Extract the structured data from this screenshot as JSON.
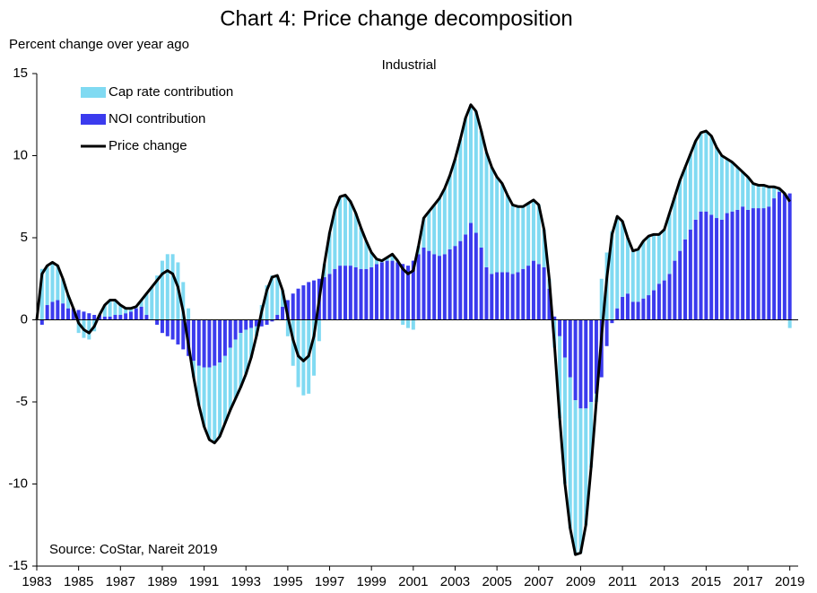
{
  "chart_data": {
    "type": "bar",
    "title": "Chart 4: Price change decomposition",
    "subtitle": "Industrial",
    "y_label": "Percent change over year ago",
    "annotation": "Source:  CoStar, Nareit 2019",
    "legend": "upper left",
    "stacked": true,
    "xlim": [
      1983,
      2019.4
    ],
    "xticks": [
      1983,
      1985,
      1987,
      1989,
      1991,
      1993,
      1995,
      1997,
      1999,
      2001,
      2003,
      2005,
      2007,
      2009,
      2011,
      2013,
      2015,
      2017,
      2019
    ],
    "ylim": [
      -15,
      15
    ],
    "yticks": [
      -15,
      -10,
      -5,
      0,
      5,
      10,
      15
    ],
    "x": [
      1983,
      1983.25,
      1983.5,
      1983.75,
      1984,
      1984.25,
      1984.5,
      1984.75,
      1985,
      1985.25,
      1985.5,
      1985.75,
      1986,
      1986.25,
      1986.5,
      1986.75,
      1987,
      1987.25,
      1987.5,
      1987.75,
      1988,
      1988.25,
      1988.5,
      1988.75,
      1989,
      1989.25,
      1989.5,
      1989.75,
      1990,
      1990.25,
      1990.5,
      1990.75,
      1991,
      1991.25,
      1991.5,
      1991.75,
      1992,
      1992.25,
      1992.5,
      1992.75,
      1993,
      1993.25,
      1993.5,
      1993.75,
      1994,
      1994.25,
      1994.5,
      1994.75,
      1995,
      1995.25,
      1995.5,
      1995.75,
      1996,
      1996.25,
      1996.5,
      1996.75,
      1997,
      1997.25,
      1997.5,
      1997.75,
      1998,
      1998.25,
      1998.5,
      1998.75,
      1999,
      1999.25,
      1999.5,
      1999.75,
      2000,
      2000.25,
      2000.5,
      2000.75,
      2001,
      2001.25,
      2001.5,
      2001.75,
      2002,
      2002.25,
      2002.5,
      2002.75,
      2003,
      2003.25,
      2003.5,
      2003.75,
      2004,
      2004.25,
      2004.5,
      2004.75,
      2005,
      2005.25,
      2005.5,
      2005.75,
      2006,
      2006.25,
      2006.5,
      2006.75,
      2007,
      2007.25,
      2007.5,
      2007.75,
      2008,
      2008.25,
      2008.5,
      2008.75,
      2009,
      2009.25,
      2009.5,
      2009.75,
      2010,
      2010.25,
      2010.5,
      2010.75,
      2011,
      2011.25,
      2011.5,
      2011.75,
      2012,
      2012.25,
      2012.5,
      2012.75,
      2013,
      2013.25,
      2013.5,
      2013.75,
      2014,
      2014.25,
      2014.5,
      2014.75,
      2015,
      2015.25,
      2015.5,
      2015.75,
      2016,
      2016.25,
      2016.5,
      2016.75,
      2017,
      2017.25,
      2017.5,
      2017.75,
      2018,
      2018.25,
      2018.5,
      2018.75,
      2019
    ],
    "series": [
      {
        "name": "NOI contribution",
        "type": "bar",
        "color": "#3b3bee",
        "values": [
          0,
          -0.3,
          0.9,
          1.1,
          1.2,
          1.0,
          0.7,
          0.7,
          0.6,
          0.5,
          0.4,
          0.3,
          0.3,
          0.2,
          0.2,
          0.3,
          0.3,
          0.4,
          0.5,
          0.7,
          0.8,
          0.3,
          0,
          -0.3,
          -0.8,
          -1.0,
          -1.2,
          -1.5,
          -1.8,
          -2.2,
          -2.5,
          -2.8,
          -2.9,
          -2.9,
          -2.8,
          -2.6,
          -2.2,
          -1.7,
          -1.2,
          -0.8,
          -0.6,
          -0.5,
          -0.4,
          -0.4,
          -0.3,
          -0.1,
          0.3,
          0.8,
          1.2,
          1.6,
          1.9,
          2.1,
          2.3,
          2.4,
          2.5,
          2.6,
          2.8,
          3.1,
          3.3,
          3.3,
          3.3,
          3.2,
          3.1,
          3.1,
          3.2,
          3.4,
          3.5,
          3.6,
          3.6,
          3.5,
          3.4,
          3.3,
          3.6,
          4.0,
          4.4,
          4.2,
          4.0,
          3.9,
          4.0,
          4.3,
          4.5,
          4.8,
          5.2,
          5.9,
          5.3,
          4.4,
          3.2,
          2.8,
          2.9,
          2.9,
          2.9,
          2.8,
          2.9,
          3.1,
          3.3,
          3.6,
          3.4,
          3.2,
          1.9,
          0.2,
          -1.0,
          -2.3,
          -3.5,
          -4.9,
          -5.4,
          -5.4,
          -5.0,
          -4.5,
          -3.5,
          -1.6,
          -0.2,
          0.7,
          1.4,
          1.6,
          1.1,
          1.1,
          1.3,
          1.5,
          1.8,
          2.2,
          2.4,
          2.8,
          3.6,
          4.2,
          4.9,
          5.5,
          6.1,
          6.6,
          6.6,
          6.4,
          6.2,
          6.1,
          6.5,
          6.6,
          6.7,
          6.9,
          6.7,
          6.8,
          6.8,
          6.8,
          6.9,
          7.4,
          7.8,
          7.7,
          7.7
        ]
      },
      {
        "name": "Cap rate contribution",
        "type": "bar",
        "color": "#80daf2",
        "values": [
          0,
          3.1,
          2.4,
          2.4,
          2.1,
          1.5,
          0.8,
          0,
          -0.8,
          -1.1,
          -1.2,
          -0.7,
          0,
          0.7,
          1.0,
          0.9,
          0.6,
          0.3,
          0.2,
          0.1,
          0.4,
          1.3,
          2.0,
          2.7,
          3.6,
          4.0,
          4.0,
          3.5,
          2.3,
          0.7,
          -1.0,
          -2.4,
          -3.6,
          -4.4,
          -4.7,
          -4.5,
          -4.1,
          -3.8,
          -3.6,
          -3.3,
          -2.7,
          -1.8,
          -0.6,
          0.9,
          2.1,
          2.7,
          2.4,
          1.0,
          -1.0,
          -2.8,
          -4.1,
          -4.6,
          -4.5,
          -3.4,
          -1.3,
          0.8,
          2.5,
          3.6,
          4.2,
          4.3,
          3.9,
          3.3,
          2.5,
          1.7,
          0.9,
          0.3,
          0.1,
          0.2,
          0.4,
          0.1,
          -0.3,
          -0.5,
          -0.6,
          0.5,
          1.8,
          2.4,
          3.0,
          3.5,
          4.0,
          4.5,
          5.3,
          6.2,
          7.1,
          7.2,
          7.4,
          7.1,
          7.0,
          6.5,
          5.8,
          5.4,
          4.7,
          4.2,
          4.0,
          3.8,
          3.8,
          3.7,
          3.6,
          2.3,
          0.6,
          -1.7,
          -5.0,
          -7.7,
          -9.2,
          -9.4,
          -8.8,
          -7.1,
          -4.0,
          -0.5,
          2.5,
          4.1,
          5.4,
          5.6,
          4.6,
          3.4,
          3.1,
          3.2,
          3.5,
          3.6,
          3.4,
          3.0,
          3.1,
          3.7,
          3.9,
          4.3,
          4.4,
          4.6,
          4.8,
          4.8,
          4.9,
          4.8,
          4.3,
          3.9,
          3.3,
          3.0,
          2.6,
          2.1,
          2.0,
          1.5,
          1.4,
          1.4,
          1.2,
          0.7,
          0.2,
          0,
          -0.5
        ]
      },
      {
        "name": "Price change",
        "type": "line",
        "color": "#000000",
        "values": [
          0,
          2.8,
          3.3,
          3.5,
          3.3,
          2.5,
          1.5,
          0.7,
          -0.2,
          -0.6,
          -0.8,
          -0.4,
          0.3,
          0.9,
          1.2,
          1.2,
          0.9,
          0.7,
          0.7,
          0.8,
          1.2,
          1.6,
          2.0,
          2.4,
          2.8,
          3.0,
          2.8,
          2.0,
          0.5,
          -1.5,
          -3.5,
          -5.2,
          -6.5,
          -7.3,
          -7.5,
          -7.1,
          -6.3,
          -5.5,
          -4.8,
          -4.1,
          -3.3,
          -2.3,
          -1.0,
          0.5,
          1.8,
          2.6,
          2.7,
          1.8,
          0.2,
          -1.2,
          -2.2,
          -2.5,
          -2.2,
          -1.0,
          1.2,
          3.4,
          5.3,
          6.7,
          7.5,
          7.6,
          7.2,
          6.5,
          5.6,
          4.8,
          4.1,
          3.7,
          3.6,
          3.8,
          4.0,
          3.6,
          3.1,
          2.8,
          3.0,
          4.5,
          6.2,
          6.6,
          7.0,
          7.4,
          8.0,
          8.8,
          9.8,
          11.0,
          12.3,
          13.1,
          12.7,
          11.5,
          10.2,
          9.3,
          8.7,
          8.3,
          7.6,
          7.0,
          6.9,
          6.9,
          7.1,
          7.3,
          7.0,
          5.5,
          2.5,
          -1.5,
          -6.0,
          -10.0,
          -12.7,
          -14.3,
          -14.2,
          -12.5,
          -9.0,
          -5.0,
          -1.0,
          2.5,
          5.2,
          6.3,
          6.0,
          5.0,
          4.2,
          4.3,
          4.8,
          5.1,
          5.2,
          5.2,
          5.5,
          6.5,
          7.5,
          8.5,
          9.3,
          10.1,
          10.9,
          11.4,
          11.5,
          11.2,
          10.5,
          10.0,
          9.8,
          9.6,
          9.3,
          9.0,
          8.7,
          8.3,
          8.2,
          8.2,
          8.1,
          8.1,
          8.0,
          7.7,
          7.2
        ]
      }
    ]
  }
}
